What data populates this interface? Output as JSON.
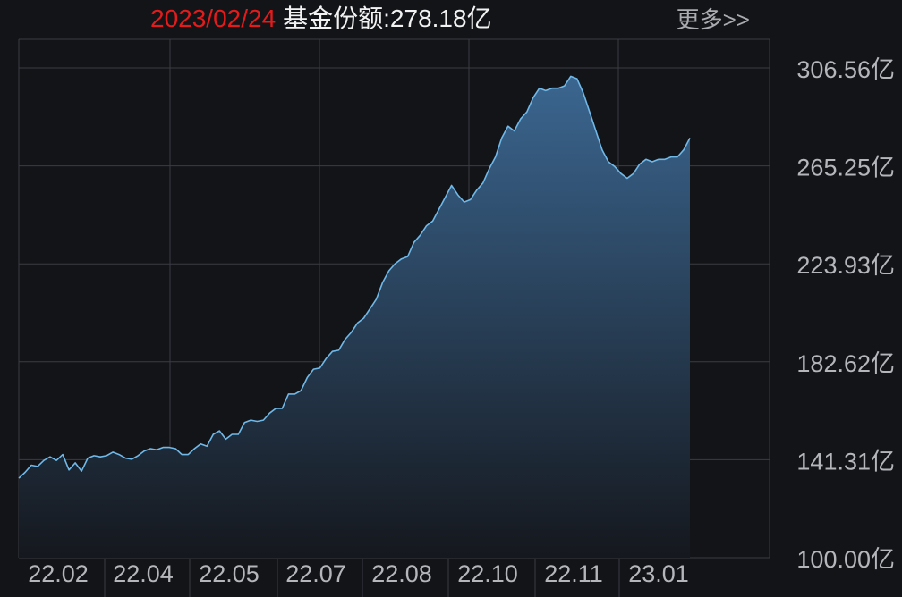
{
  "header": {
    "date": "2023/02/24",
    "label": "基金份额:",
    "value": "278.18亿",
    "more_label": "更多>>"
  },
  "colors": {
    "background": "#131418",
    "grid": "#3a3c43",
    "line": "#6fb8e8",
    "area_top": "#3b6690",
    "area_bottom": "#15181e",
    "date_text": "#e31b1b",
    "tick_text": "#b4b6bb"
  },
  "chart_data": {
    "type": "area",
    "unit": "亿",
    "ylim": [
      100.0,
      306.56
    ],
    "y_ticks": [
      "306.56亿",
      "265.25亿",
      "223.93亿",
      "182.62亿",
      "141.31亿",
      "100.00亿"
    ],
    "x_ticks": [
      "22.02",
      "22.04",
      "22.05",
      "22.07",
      "22.08",
      "22.10",
      "22.11",
      "23.01"
    ],
    "grid": true,
    "series": [
      {
        "values": [
          133.5,
          136,
          139,
          138.5,
          141,
          142.5,
          141,
          143.5,
          137,
          140,
          136.5,
          142,
          143,
          142.5,
          143,
          144.5,
          143.5,
          142,
          141.5,
          143,
          145,
          146,
          145.5,
          146.5,
          146.5,
          146,
          143.5,
          143.5,
          146,
          148,
          147,
          152,
          153.5,
          150,
          152,
          152,
          157,
          158,
          157.5,
          158,
          161,
          163,
          163,
          169,
          169,
          170.5,
          176,
          179.5,
          180,
          184,
          187,
          187.5,
          192,
          195,
          199,
          201,
          205,
          209,
          216,
          221,
          224,
          226,
          227,
          233,
          236,
          240,
          242,
          247,
          252,
          257,
          253,
          250,
          251,
          255,
          258,
          264,
          269,
          277,
          282,
          280,
          285,
          288,
          294,
          298,
          297,
          298,
          298,
          299,
          303,
          302,
          296,
          288,
          280,
          272,
          267,
          265,
          262,
          260,
          262,
          266,
          268,
          267,
          268,
          268,
          269,
          269,
          272,
          277
        ]
      }
    ]
  }
}
